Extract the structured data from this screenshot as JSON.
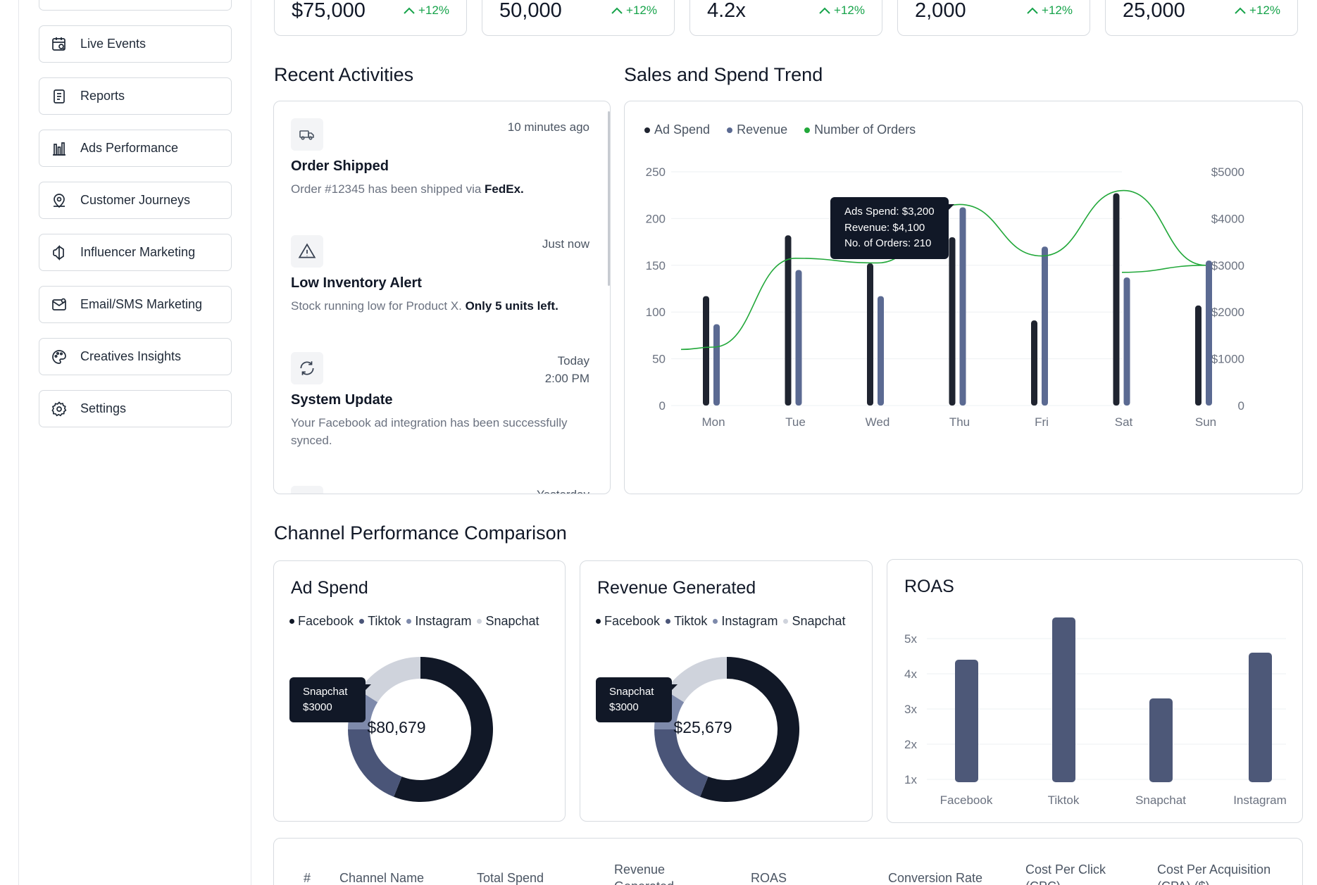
{
  "sidebar": {
    "items": [
      {
        "label": "Live Events",
        "icon": "calendar-search-icon"
      },
      {
        "label": "Reports",
        "icon": "document-icon"
      },
      {
        "label": "Ads Performance",
        "icon": "bar-chart-icon"
      },
      {
        "label": "Customer Journeys",
        "icon": "map-pin-icon"
      },
      {
        "label": "Influencer Marketing",
        "icon": "megaphone-icon"
      },
      {
        "label": "Email/SMS Marketing",
        "icon": "mail-icon"
      },
      {
        "label": "Creatives Insights",
        "icon": "palette-icon"
      },
      {
        "label": "Settings",
        "icon": "gear-icon"
      }
    ]
  },
  "kpis": [
    {
      "value": "$75,000",
      "change": "+12%"
    },
    {
      "value": "50,000",
      "change": "+12%"
    },
    {
      "value": "4.2x",
      "change": "+12%"
    },
    {
      "value": "2,000",
      "change": "+12%"
    },
    {
      "value": "25,000",
      "change": "+12%"
    }
  ],
  "activities": {
    "title": "Recent Activities",
    "items": [
      {
        "time": "10 minutes ago",
        "title": "Order Shipped",
        "desc": "Order #12345 has been shipped via ",
        "desc_bold": "FedEx.",
        "icon": "truck-icon"
      },
      {
        "time": "Just now",
        "title": "Low Inventory Alert",
        "desc": "Stock running low for Product X. ",
        "desc_bold": "Only 5 units left.",
        "icon": "warning-icon"
      },
      {
        "time": "Today",
        "time2": "2:00 PM",
        "title": "System Update",
        "desc": "Your Facebook ad integration has been successfully synced.",
        "desc_bold": "",
        "icon": "refresh-icon"
      },
      {
        "time": "Yesterday",
        "icon": "generic-icon"
      }
    ]
  },
  "trend": {
    "title": "Sales and Spend Trend",
    "legend": [
      "Ad Spend",
      "Revenue",
      "Number of Orders"
    ],
    "tooltip": [
      "Ads Spend: $3,200",
      "Revenue: $4,100",
      "No. of Orders: 210"
    ]
  },
  "channel": {
    "title": "Channel Performance Comparison",
    "legend": [
      "Facebook",
      "Tiktok",
      "Instagram",
      "Snapchat"
    ],
    "ad_spend": {
      "title": "Ad Spend",
      "total": "$80,679",
      "tooltip_name": "Snapchat",
      "tooltip_value": "$3000"
    },
    "revenue": {
      "title": "Revenue Generated",
      "total": "$25,679",
      "tooltip_name": "Snapchat",
      "tooltip_value": "$3000"
    },
    "roas": {
      "title": "ROAS"
    }
  },
  "table": {
    "headers": [
      "#",
      "Channel Name",
      "Total Spend",
      "Revenue Generated",
      "ROAS",
      "Conversion Rate",
      "Cost Per Click (CPC)",
      "Cost Per Acquisition (CPA) ($)"
    ]
  },
  "colors": {
    "ad_spend": "#1f2430",
    "revenue": "#5b6a92",
    "orders": "#22a83a",
    "positive": "#16a34a"
  },
  "chart_data": [
    {
      "type": "bar",
      "title": "Sales and Spend Trend",
      "categories": [
        "Mon",
        "Tue",
        "Wed",
        "Thu",
        "Fri",
        "Sat",
        "Sun"
      ],
      "series": [
        {
          "name": "Ad Spend",
          "axis": "left",
          "values": [
            117,
            182,
            152,
            180,
            91,
            227,
            107
          ]
        },
        {
          "name": "Revenue",
          "axis": "left",
          "values": [
            87,
            145,
            117,
            212,
            170,
            137,
            155
          ]
        },
        {
          "name": "Number of Orders",
          "type": "line",
          "axis": "right",
          "values": [
            1250,
            3150,
            3050,
            4300,
            3200,
            4600,
            3000
          ]
        }
      ],
      "y_left": {
        "ticks": [
          "0",
          "50",
          "100",
          "150",
          "200",
          "250"
        ],
        "range": [
          0,
          250
        ]
      },
      "y_right": {
        "ticks": [
          "0",
          "$1000",
          "$2000",
          "$3000",
          "$4000",
          "$5000"
        ],
        "range": [
          0,
          5000
        ]
      }
    },
    {
      "type": "pie",
      "title": "Ad Spend",
      "categories": [
        "Facebook",
        "Tiktok",
        "Instagram",
        "Snapchat"
      ],
      "values": [
        56,
        19,
        9,
        16
      ],
      "center_label": "$80,679"
    },
    {
      "type": "pie",
      "title": "Revenue Generated",
      "categories": [
        "Facebook",
        "Tiktok",
        "Instagram",
        "Snapchat"
      ],
      "values": [
        56,
        19,
        9,
        16
      ],
      "center_label": "$25,679"
    },
    {
      "type": "bar",
      "title": "ROAS",
      "categories": [
        "Facebook",
        "Tiktok",
        "Snapchat",
        "Instagram"
      ],
      "values": [
        4.4,
        5.6,
        3.3,
        4.6
      ],
      "y_ticks": [
        "1x",
        "2x",
        "3x",
        "4x",
        "5x"
      ],
      "ylim": [
        1,
        5.8
      ]
    }
  ]
}
